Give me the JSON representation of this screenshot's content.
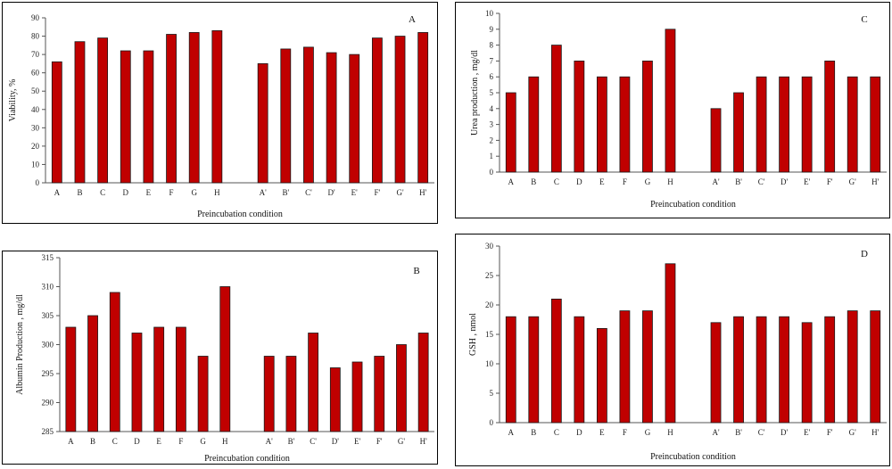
{
  "chart_data": [
    {
      "id": "A",
      "type": "bar",
      "title": "A",
      "xlabel": "Preincubation condition",
      "ylabel": "Viability, %",
      "ylim": [
        0,
        90
      ],
      "yticks": [
        "0",
        "10",
        "20",
        "30",
        "40",
        "50",
        "60",
        "70",
        "80",
        "90"
      ],
      "categories": [
        "A",
        "B",
        "C",
        "D",
        "E",
        "F",
        "G",
        "H",
        "",
        "A'",
        "B'",
        "C'",
        "D'",
        "E'",
        "F'",
        "G'",
        "H'"
      ],
      "values": [
        66,
        77,
        79,
        72,
        72,
        81,
        82,
        83,
        null,
        65,
        73,
        74,
        71,
        70,
        79,
        80,
        82
      ],
      "bar_color": "#c00000",
      "grid": false
    },
    {
      "id": "B",
      "type": "bar",
      "title": "B",
      "xlabel": "Preincubation condition",
      "ylabel": "Albumin Production , mg/dl",
      "ylim": [
        285,
        315
      ],
      "yticks": [
        "285",
        "290",
        "295",
        "300",
        "305",
        "310",
        "315"
      ],
      "categories": [
        "A",
        "B",
        "C",
        "D",
        "E",
        "F",
        "G",
        "H",
        "",
        "A'",
        "B'",
        "C'",
        "D'",
        "E'",
        "F'",
        "G'",
        "H'"
      ],
      "values": [
        303,
        305,
        309,
        302,
        303,
        303,
        298,
        310,
        null,
        298,
        298,
        302,
        296,
        297,
        298,
        300,
        302
      ],
      "bar_color": "#c00000",
      "grid": false
    },
    {
      "id": "C",
      "type": "bar",
      "title": "C",
      "xlabel": "Preincubation condition",
      "ylabel": "Urea production , mg/dl",
      "ylim": [
        0,
        10
      ],
      "yticks": [
        "0",
        "1",
        "2",
        "3",
        "4",
        "5",
        "6",
        "7",
        "8",
        "9",
        "10"
      ],
      "categories": [
        "A",
        "B",
        "C",
        "D",
        "E",
        "F",
        "G",
        "H",
        "",
        "A'",
        "B'",
        "C'",
        "D'",
        "E'",
        "F'",
        "G'",
        "H'"
      ],
      "values": [
        5,
        6,
        8,
        7,
        6,
        6,
        7,
        9,
        null,
        4,
        5,
        6,
        6,
        6,
        7,
        6,
        6
      ],
      "bar_color": "#c00000",
      "grid": false
    },
    {
      "id": "D",
      "type": "bar",
      "title": "D",
      "xlabel": "Preincubation condition",
      "ylabel": "GSH , nmol",
      "ylim": [
        0,
        30
      ],
      "yticks": [
        "0",
        "5",
        "10",
        "15",
        "20",
        "25",
        "30"
      ],
      "categories": [
        "A",
        "B",
        "C",
        "D",
        "E",
        "F",
        "G",
        "H",
        "",
        "A'",
        "B'",
        "C'",
        "D'",
        "E'",
        "F'",
        "G'",
        "H'"
      ],
      "values": [
        18,
        18,
        21,
        18,
        16,
        19,
        19,
        27,
        null,
        17,
        18,
        18,
        18,
        17,
        18,
        19,
        19
      ],
      "bar_color": "#c00000",
      "grid": false
    }
  ]
}
